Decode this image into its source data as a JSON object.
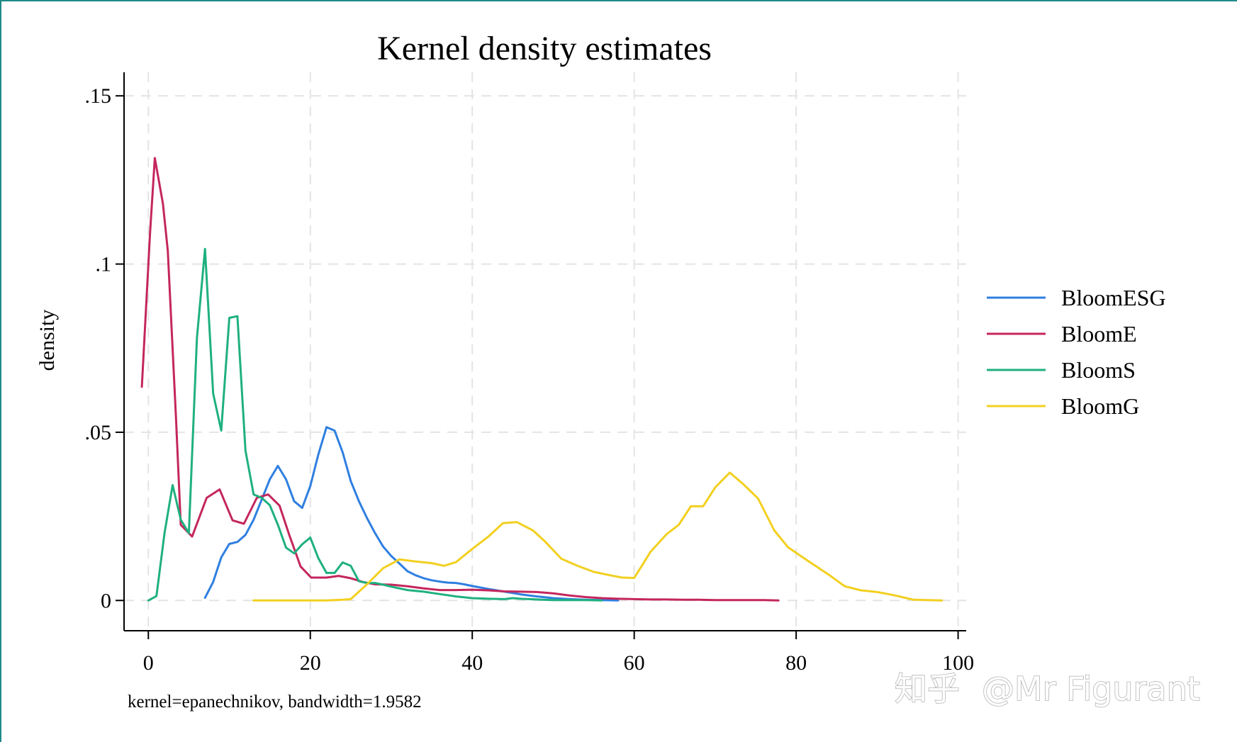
{
  "chart_data": {
    "type": "line",
    "title": "Kernel density estimates",
    "xlabel": "",
    "ylabel": "density",
    "xlim": [
      -3,
      101
    ],
    "ylim": [
      -0.009,
      0.157
    ],
    "xticks": [
      0,
      20,
      40,
      60,
      80,
      100
    ],
    "xtick_labels": [
      "0",
      "20",
      "40",
      "60",
      "80",
      "100"
    ],
    "yticks": [
      0,
      0.05,
      0.1,
      0.15
    ],
    "ytick_labels": [
      "0",
      ".05",
      ".1",
      ".15"
    ],
    "grid": true,
    "legend_position": "right",
    "note": "kernel=epanechnikov, bandwidth=1.9582",
    "series": [
      {
        "name": "BloomESG",
        "color": "#2f7fe0",
        "points": [
          [
            7,
            0.0008
          ],
          [
            8,
            0.0055
          ],
          [
            9,
            0.0128
          ],
          [
            10,
            0.0168
          ],
          [
            11,
            0.0174
          ],
          [
            12,
            0.0195
          ],
          [
            13,
            0.024
          ],
          [
            14,
            0.03
          ],
          [
            15,
            0.036
          ],
          [
            16,
            0.04
          ],
          [
            17,
            0.036
          ],
          [
            18,
            0.0295
          ],
          [
            19,
            0.0275
          ],
          [
            20,
            0.034
          ],
          [
            21,
            0.0435
          ],
          [
            22,
            0.0515
          ],
          [
            23,
            0.0505
          ],
          [
            24,
            0.044
          ],
          [
            25,
            0.0355
          ],
          [
            26,
            0.0295
          ],
          [
            27,
            0.0245
          ],
          [
            28,
            0.02
          ],
          [
            29,
            0.016
          ],
          [
            30,
            0.0132
          ],
          [
            31,
            0.011
          ],
          [
            32,
            0.0087
          ],
          [
            33,
            0.0075
          ],
          [
            34,
            0.0066
          ],
          [
            35,
            0.006
          ],
          [
            36,
            0.0056
          ],
          [
            37,
            0.0053
          ],
          [
            38,
            0.0052
          ],
          [
            39,
            0.0048
          ],
          [
            40,
            0.0043
          ],
          [
            42,
            0.0034
          ],
          [
            44,
            0.0026
          ],
          [
            46,
            0.0018
          ],
          [
            48,
            0.0012
          ],
          [
            50,
            0.0007
          ],
          [
            52,
            0.0004
          ],
          [
            54,
            0.0002
          ],
          [
            56,
            0.0001
          ],
          [
            58,
            0.0
          ]
        ]
      },
      {
        "name": "BloomE",
        "color": "#c4265e",
        "points": [
          [
            -0.8,
            0.0635
          ],
          [
            0.2,
            0.109
          ],
          [
            0.8,
            0.1315
          ],
          [
            1.8,
            0.118
          ],
          [
            2.4,
            0.104
          ],
          [
            3.4,
            0.055
          ],
          [
            4.0,
            0.0225
          ],
          [
            5.4,
            0.019
          ],
          [
            7.2,
            0.0305
          ],
          [
            8.8,
            0.033
          ],
          [
            10.4,
            0.0238
          ],
          [
            11.8,
            0.0228
          ],
          [
            13.4,
            0.0305
          ],
          [
            14.8,
            0.0315
          ],
          [
            16.2,
            0.0282
          ],
          [
            17.4,
            0.0195
          ],
          [
            18.8,
            0.0101
          ],
          [
            20.1,
            0.0068
          ],
          [
            22.0,
            0.0068
          ],
          [
            23.5,
            0.0073
          ],
          [
            25.0,
            0.0066
          ],
          [
            26.5,
            0.0055
          ],
          [
            28.0,
            0.0048
          ],
          [
            30.0,
            0.0047
          ],
          [
            32.0,
            0.0042
          ],
          [
            34.0,
            0.0036
          ],
          [
            36.0,
            0.0031
          ],
          [
            38.0,
            0.0031
          ],
          [
            40.0,
            0.0032
          ],
          [
            42.0,
            0.003
          ],
          [
            44.0,
            0.0027
          ],
          [
            46.0,
            0.0026
          ],
          [
            48.0,
            0.0025
          ],
          [
            50.0,
            0.0021
          ],
          [
            52.0,
            0.0015
          ],
          [
            54.0,
            0.001
          ],
          [
            56.0,
            0.0007
          ],
          [
            58.0,
            0.0005
          ],
          [
            60.0,
            0.0004
          ],
          [
            62.0,
            0.0003
          ],
          [
            64.0,
            0.0003
          ],
          [
            66.0,
            0.0002
          ],
          [
            68.0,
            0.0002
          ],
          [
            70.0,
            0.0001
          ],
          [
            72.0,
            0.0001
          ],
          [
            74.0,
            0.0001
          ],
          [
            76.0,
            0.0001
          ],
          [
            77.8,
            0.0
          ]
        ]
      },
      {
        "name": "BloomS",
        "color": "#1fb07f",
        "points": [
          [
            0,
            0.0
          ],
          [
            1,
            0.0013
          ],
          [
            2,
            0.02
          ],
          [
            3,
            0.0343
          ],
          [
            4,
            0.024
          ],
          [
            5,
            0.02
          ],
          [
            6,
            0.078
          ],
          [
            7,
            0.1045
          ],
          [
            8,
            0.0615
          ],
          [
            9,
            0.0505
          ],
          [
            10,
            0.084
          ],
          [
            11,
            0.0845
          ],
          [
            12,
            0.0445
          ],
          [
            13,
            0.0315
          ],
          [
            14,
            0.0305
          ],
          [
            15,
            0.0283
          ],
          [
            16,
            0.0225
          ],
          [
            17,
            0.0157
          ],
          [
            18,
            0.014
          ],
          [
            19,
            0.0167
          ],
          [
            20,
            0.0187
          ],
          [
            21,
            0.0125
          ],
          [
            22,
            0.0082
          ],
          [
            23,
            0.0082
          ],
          [
            24,
            0.0113
          ],
          [
            25,
            0.0103
          ],
          [
            26,
            0.0057
          ],
          [
            27,
            0.0052
          ],
          [
            28,
            0.0052
          ],
          [
            29,
            0.0047
          ],
          [
            30,
            0.0041
          ],
          [
            32,
            0.0031
          ],
          [
            34,
            0.0026
          ],
          [
            36,
            0.0019
          ],
          [
            38,
            0.0012
          ],
          [
            40,
            0.0007
          ],
          [
            42,
            0.0005
          ],
          [
            44,
            0.0004
          ],
          [
            45,
            0.0007
          ],
          [
            46,
            0.0005
          ],
          [
            48,
            0.0003
          ],
          [
            50,
            0.0001
          ],
          [
            52,
            0.0001
          ],
          [
            54,
            0.0001
          ],
          [
            56,
            0.0
          ]
        ]
      },
      {
        "name": "BloomG",
        "color": "#f2d020",
        "points": [
          [
            13,
            0.0
          ],
          [
            16,
            0.0
          ],
          [
            20,
            0.0
          ],
          [
            22,
            0.0
          ],
          [
            24,
            0.0002
          ],
          [
            25,
            0.0004
          ],
          [
            27,
            0.0048
          ],
          [
            29,
            0.0096
          ],
          [
            31,
            0.0122
          ],
          [
            33,
            0.0116
          ],
          [
            35,
            0.0111
          ],
          [
            36.5,
            0.0103
          ],
          [
            38,
            0.0114
          ],
          [
            40,
            0.0153
          ],
          [
            42,
            0.019
          ],
          [
            43.8,
            0.023
          ],
          [
            45.5,
            0.0233
          ],
          [
            47.5,
            0.0208
          ],
          [
            49,
            0.0175
          ],
          [
            51,
            0.0124
          ],
          [
            53,
            0.0103
          ],
          [
            55,
            0.0085
          ],
          [
            57,
            0.0075
          ],
          [
            58.5,
            0.0068
          ],
          [
            60,
            0.0067
          ],
          [
            62,
            0.0144
          ],
          [
            64,
            0.0197
          ],
          [
            65.5,
            0.0225
          ],
          [
            67,
            0.028
          ],
          [
            68.5,
            0.028
          ],
          [
            70,
            0.0336
          ],
          [
            71.8,
            0.038
          ],
          [
            73.5,
            0.0345
          ],
          [
            75.3,
            0.0303
          ],
          [
            77.3,
            0.0208
          ],
          [
            79,
            0.0158
          ],
          [
            81,
            0.0125
          ],
          [
            84,
            0.0077
          ],
          [
            86,
            0.0042
          ],
          [
            88,
            0.003
          ],
          [
            90,
            0.0025
          ],
          [
            92,
            0.0016
          ],
          [
            94.5,
            0.0002
          ],
          [
            98,
            0.0
          ]
        ]
      }
    ]
  },
  "watermark": {
    "brand_text": "知乎",
    "author_text": "@Mr Figurant"
  }
}
